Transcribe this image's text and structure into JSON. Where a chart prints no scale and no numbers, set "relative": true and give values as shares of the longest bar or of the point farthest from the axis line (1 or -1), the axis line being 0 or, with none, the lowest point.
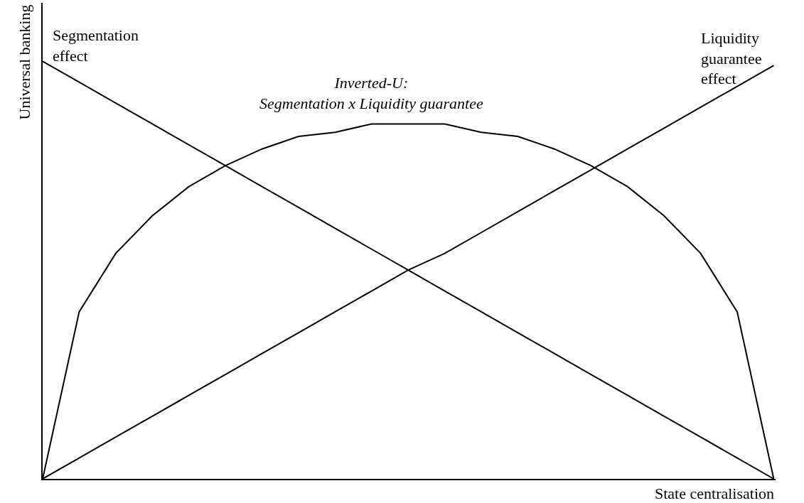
{
  "chart_data": {
    "type": "line",
    "relative": true,
    "xlabel": "State centralisation",
    "ylabel": "Universal banking",
    "legend": false,
    "grid": false,
    "marker": "none",
    "line_style": "solid",
    "categories": [
      null,
      null,
      null,
      null,
      null,
      null,
      null,
      null,
      null,
      null,
      null,
      null,
      null,
      null,
      null,
      null,
      null,
      null,
      null,
      null,
      null
    ],
    "series": [
      {
        "name": "Segmentation\neffect",
        "color": "#000000",
        "values": [
          1,
          0.95,
          0.9,
          0.85,
          0.8,
          0.75,
          0.7,
          0.65,
          0.6,
          0.55,
          0.5,
          0.45,
          0.4,
          0.35,
          0.3,
          0.25,
          0.2,
          0.15,
          0.1,
          0.05,
          0
        ]
      },
      {
        "name": "Liquidity\nguarantee\neffect",
        "color": "#000000",
        "values": [
          0,
          0.05,
          0.1,
          0.15,
          0.2,
          0.25,
          0.3,
          0.35,
          0.4,
          0.45,
          0.5,
          0.54,
          0.59,
          0.64,
          0.69,
          0.74,
          0.79,
          0.84,
          0.89,
          0.94,
          0.99
        ]
      },
      {
        "name": "Inverted-U:\nSegmentation x Liquidity guarantee",
        "color": "#000000",
        "values": [
          0,
          0.4,
          0.54,
          0.63,
          0.7,
          0.75,
          0.79,
          0.82,
          0.83,
          0.85,
          0.85,
          0.85,
          0.83,
          0.82,
          0.79,
          0.75,
          0.7,
          0.63,
          0.54,
          0.4,
          0
        ]
      }
    ]
  }
}
